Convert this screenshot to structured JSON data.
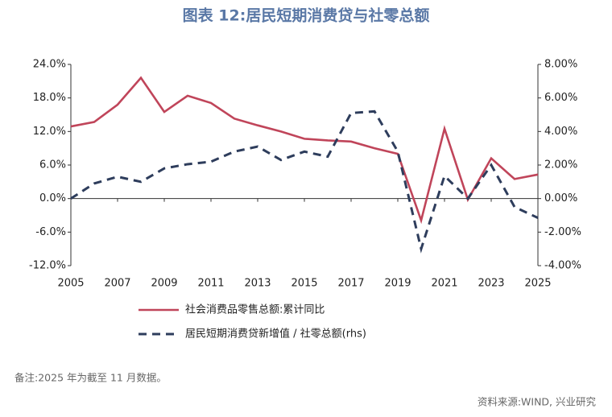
{
  "chart_data": {
    "type": "line",
    "title": "图表 12:居民短期消费贷与社零总额",
    "note": "备注:2025 年为截至 11 月数据。",
    "source": "资料来源:WIND, 兴业研究",
    "x": [
      2005,
      2006,
      2007,
      2008,
      2009,
      2010,
      2011,
      2012,
      2013,
      2014,
      2015,
      2016,
      2017,
      2018,
      2019,
      2020,
      2021,
      2022,
      2023,
      2024,
      2025
    ],
    "xlim": [
      2005,
      2025
    ],
    "xticks": [
      2005,
      2007,
      2009,
      2011,
      2013,
      2015,
      2017,
      2019,
      2021,
      2023,
      2025
    ],
    "ylim": [
      -12,
      24
    ],
    "yticks": [
      {
        "value": -12,
        "label": "-12.0%"
      },
      {
        "value": -6,
        "label": "-6.0%"
      },
      {
        "value": 0,
        "label": "0.0%"
      },
      {
        "value": 6,
        "label": "6.0%"
      },
      {
        "value": 12,
        "label": "12.0%"
      },
      {
        "value": 18,
        "label": "18.0%"
      },
      {
        "value": 24,
        "label": "24.0%"
      }
    ],
    "y2lim": [
      -4,
      8
    ],
    "y2ticks": [
      {
        "value": -4,
        "label": "-4.00%"
      },
      {
        "value": -2,
        "label": "-2.00%"
      },
      {
        "value": 0,
        "label": "0.00%"
      },
      {
        "value": 2,
        "label": "2.00%"
      },
      {
        "value": 4,
        "label": "4.00%"
      },
      {
        "value": 6,
        "label": "6.00%"
      },
      {
        "value": 8,
        "label": "8.00%"
      }
    ],
    "series": [
      {
        "name": "社会消费品零售总额:累计同比",
        "color": "#c0455a",
        "dash": false,
        "values": [
          12.9,
          13.7,
          16.8,
          21.6,
          15.5,
          18.4,
          17.1,
          14.3,
          13.1,
          12.0,
          10.7,
          10.4,
          10.2,
          9.0,
          8.0,
          -3.9,
          12.5,
          -0.2,
          7.2,
          3.5,
          4.3
        ]
      },
      {
        "name": "居民短期消费贷新增值 / 社零总额(rhs)",
        "color": "#2e3d5c",
        "dash": true,
        "axis": "y2",
        "values": [
          0.0,
          0.9,
          1.3,
          1.0,
          1.8,
          2.05,
          2.2,
          2.8,
          3.1,
          2.3,
          2.8,
          2.5,
          5.1,
          5.2,
          2.8,
          -3.0,
          1.35,
          0.0,
          2.0,
          -0.5,
          -1.15
        ]
      }
    ]
  }
}
